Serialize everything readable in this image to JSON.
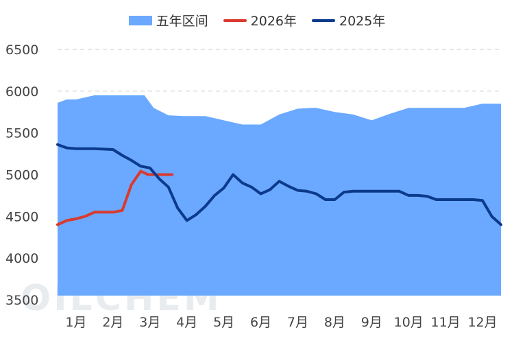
{
  "legend": {
    "band": "五年区间",
    "s2026": "2026年",
    "s2025": "2025年"
  },
  "watermark": "OILCHEM",
  "colors": {
    "band": "#6aa9ff",
    "s2026": "#d93a2f",
    "s2025": "#0b3a8c",
    "grid": "#cfcfcf",
    "text": "#444444"
  },
  "chart_data": {
    "type": "area",
    "x_categories": [
      "1月",
      "2月",
      "3月",
      "4月",
      "5月",
      "6月",
      "7月",
      "8月",
      "9月",
      "10月",
      "11月",
      "12月"
    ],
    "xlim": [
      0,
      12
    ],
    "ylim": [
      3500,
      6500
    ],
    "y_ticks": [
      3500,
      4000,
      4500,
      5000,
      5500,
      6000,
      6500
    ],
    "grid": "horizontal dashed",
    "legend_position": "top",
    "band": {
      "name": "五年区间",
      "x": [
        0,
        0.25,
        0.5,
        1,
        2,
        2.35,
        2.6,
        3,
        3.4,
        4,
        4.5,
        5,
        5.5,
        6,
        6.5,
        6.9,
        7,
        7.5,
        8,
        8.5,
        9,
        9.5,
        10,
        10.5,
        11,
        11.5,
        12
      ],
      "upper": [
        5860,
        5900,
        5900,
        5950,
        5950,
        5950,
        5800,
        5710,
        5700,
        5700,
        5650,
        5600,
        5600,
        5720,
        5790,
        5800,
        5800,
        5750,
        5720,
        5650,
        5730,
        5800,
        5800,
        5800,
        5800,
        5850,
        5850
      ],
      "lower": [
        3550,
        3550,
        3550,
        3550,
        3550,
        3550,
        3550,
        3550,
        3550,
        3550,
        3550,
        3550,
        3550,
        3550,
        3550,
        3550,
        3550,
        3550,
        3550,
        3550,
        3550,
        3550,
        3550,
        3550,
        3550,
        3550,
        3550
      ]
    },
    "series": [
      {
        "name": "2026年",
        "x": [
          0,
          0.25,
          0.5,
          0.75,
          1,
          1.5,
          1.75,
          2,
          2.25,
          2.45,
          2.65,
          3.1
        ],
        "values": [
          4400,
          4450,
          4470,
          4500,
          4550,
          4550,
          4570,
          4880,
          5040,
          5000,
          5000,
          5000
        ]
      },
      {
        "name": "2025年",
        "x": [
          0,
          0.25,
          0.5,
          1,
          1.5,
          1.75,
          2,
          2.25,
          2.5,
          2.75,
          3,
          3.25,
          3.5,
          3.75,
          4,
          4.25,
          4.5,
          4.75,
          5,
          5.25,
          5.5,
          5.75,
          6,
          6.25,
          6.5,
          6.75,
          7,
          7.25,
          7.5,
          7.75,
          8,
          8.25,
          8.5,
          8.75,
          9,
          9.25,
          9.5,
          9.75,
          10,
          10.25,
          10.5,
          10.75,
          11,
          11.25,
          11.5,
          11.75,
          12
        ],
        "values": [
          5360,
          5320,
          5310,
          5310,
          5300,
          5230,
          5170,
          5100,
          5080,
          4950,
          4850,
          4600,
          4450,
          4520,
          4620,
          4750,
          4840,
          5000,
          4900,
          4850,
          4770,
          4820,
          4920,
          4860,
          4810,
          4800,
          4770,
          4700,
          4700,
          4790,
          4800,
          4800,
          4800,
          4800,
          4800,
          4800,
          4750,
          4750,
          4740,
          4700,
          4700,
          4700,
          4700,
          4700,
          4690,
          4500,
          4400
        ]
      }
    ]
  }
}
